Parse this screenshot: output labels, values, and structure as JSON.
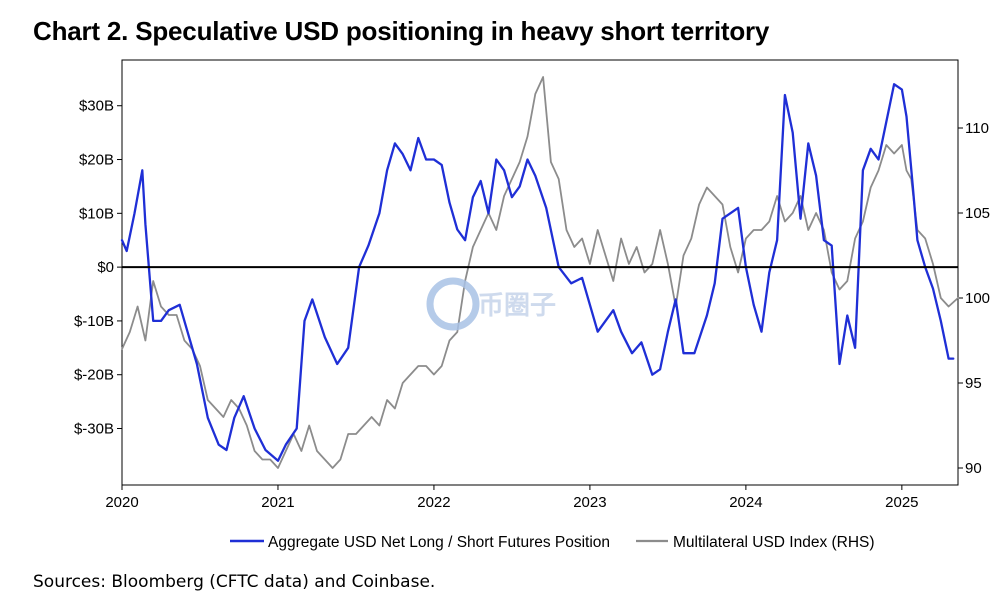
{
  "title": "Chart 2. Speculative USD positioning in heavy short territory",
  "source": "Sources: Bloomberg (CFTC data) and Coinbase.",
  "watermark": "币圈子",
  "colors": {
    "positioning": "#1f2fd6",
    "usd_index": "#8c8c8c",
    "zero_line": "#000000"
  },
  "chart_data": {
    "type": "line",
    "title": "Chart 2. Speculative USD positioning in heavy short territory",
    "x_ticks": [
      "2020",
      "2021",
      "2022",
      "2023",
      "2024",
      "2025"
    ],
    "xlim": [
      2020.0,
      2025.36
    ],
    "y_left": {
      "ticks": [
        "$30B",
        "$20B",
        "$10B",
        "$0",
        "$-10B",
        "$-20B",
        "$-30B"
      ],
      "tick_values": [
        30,
        20,
        10,
        0,
        -10,
        -20,
        -30
      ],
      "ylim": [
        -40.5,
        38.5
      ],
      "unit": "USD billions"
    },
    "y_right": {
      "ticks": [
        "110",
        "105",
        "100",
        "95",
        "90"
      ],
      "tick_values": [
        110,
        105,
        100,
        95,
        90
      ],
      "ylim": [
        89,
        114
      ]
    },
    "zero_line": 0,
    "legend_position": "bottom",
    "series": [
      {
        "name": "Aggregate USD Net Long / Short Futures Position",
        "axis": "left",
        "color": "#1f2fd6",
        "x": [
          2020.0,
          2020.03,
          2020.08,
          2020.13,
          2020.15,
          2020.2,
          2020.25,
          2020.3,
          2020.37,
          2020.42,
          2020.48,
          2020.55,
          2020.62,
          2020.67,
          2020.72,
          2020.78,
          2020.85,
          2020.92,
          2021.0,
          2021.05,
          2021.12,
          2021.17,
          2021.22,
          2021.3,
          2021.38,
          2021.45,
          2021.52,
          2021.58,
          2021.65,
          2021.7,
          2021.75,
          2021.8,
          2021.85,
          2021.9,
          2021.95,
          2022.0,
          2022.05,
          2022.1,
          2022.15,
          2022.2,
          2022.25,
          2022.3,
          2022.35,
          2022.4,
          2022.45,
          2022.5,
          2022.55,
          2022.6,
          2022.65,
          2022.72,
          2022.8,
          2022.88,
          2022.95,
          2023.0,
          2023.05,
          2023.1,
          2023.15,
          2023.2,
          2023.27,
          2023.33,
          2023.4,
          2023.45,
          2023.5,
          2023.55,
          2023.6,
          2023.67,
          2023.75,
          2023.8,
          2023.85,
          2023.9,
          2023.95,
          2024.0,
          2024.05,
          2024.1,
          2024.15,
          2024.2,
          2024.25,
          2024.3,
          2024.35,
          2024.4,
          2024.45,
          2024.5,
          2024.55,
          2024.6,
          2024.65,
          2024.7,
          2024.75,
          2024.8,
          2024.85,
          2024.9,
          2024.95,
          2025.0,
          2025.03,
          2025.07,
          2025.1,
          2025.15,
          2025.2,
          2025.25,
          2025.3,
          2025.33
        ],
        "values": [
          5,
          3,
          10,
          18,
          8,
          -10,
          -10,
          -8,
          -7,
          -12,
          -18,
          -28,
          -33,
          -34,
          -28,
          -24,
          -30,
          -34,
          -36,
          -33,
          -30,
          -10,
          -6,
          -13,
          -18,
          -15,
          0,
          4,
          10,
          18,
          23,
          21,
          18,
          24,
          20,
          20,
          19,
          12,
          7,
          5,
          13,
          16,
          10,
          20,
          18,
          13,
          15,
          20,
          17,
          11,
          0,
          -3,
          -2,
          -7,
          -12,
          -10,
          -8,
          -12,
          -16,
          -14,
          -20,
          -19,
          -12,
          -6,
          -16,
          -16,
          -9,
          -3,
          9,
          10,
          11,
          0,
          -7,
          -12,
          -1,
          5,
          32,
          25,
          9,
          23,
          17,
          5,
          4,
          -18,
          -9,
          -15,
          18,
          22,
          20,
          27,
          34,
          33,
          28,
          15,
          5,
          0,
          -4,
          -10,
          -17,
          -17
        ]
      },
      {
        "name": "Multilateral USD Index (RHS)",
        "axis": "right",
        "color": "#8c8c8c",
        "x": [
          2020.0,
          2020.05,
          2020.1,
          2020.15,
          2020.2,
          2020.25,
          2020.3,
          2020.35,
          2020.4,
          2020.45,
          2020.5,
          2020.55,
          2020.6,
          2020.65,
          2020.7,
          2020.75,
          2020.8,
          2020.85,
          2020.9,
          2020.95,
          2021.0,
          2021.05,
          2021.1,
          2021.15,
          2021.2,
          2021.25,
          2021.3,
          2021.35,
          2021.4,
          2021.45,
          2021.5,
          2021.55,
          2021.6,
          2021.65,
          2021.7,
          2021.75,
          2021.8,
          2021.85,
          2021.9,
          2021.95,
          2022.0,
          2022.05,
          2022.1,
          2022.15,
          2022.2,
          2022.25,
          2022.3,
          2022.35,
          2022.4,
          2022.45,
          2022.5,
          2022.55,
          2022.6,
          2022.65,
          2022.7,
          2022.75,
          2022.8,
          2022.85,
          2022.9,
          2022.95,
          2023.0,
          2023.05,
          2023.1,
          2023.15,
          2023.2,
          2023.25,
          2023.3,
          2023.35,
          2023.4,
          2023.45,
          2023.5,
          2023.55,
          2023.6,
          2023.65,
          2023.7,
          2023.75,
          2023.8,
          2023.85,
          2023.9,
          2023.95,
          2024.0,
          2024.05,
          2024.1,
          2024.15,
          2024.2,
          2024.25,
          2024.3,
          2024.35,
          2024.4,
          2024.45,
          2024.5,
          2024.55,
          2024.6,
          2024.65,
          2024.7,
          2024.75,
          2024.8,
          2024.85,
          2024.9,
          2024.95,
          2025.0,
          2025.03,
          2025.06,
          2025.1,
          2025.15,
          2025.2,
          2025.25,
          2025.3,
          2025.36
        ],
        "values": [
          97,
          98,
          99.5,
          97.5,
          101,
          99.5,
          99,
          99,
          97.5,
          97,
          96,
          94,
          93.5,
          93,
          94,
          93.5,
          92.5,
          91,
          90.5,
          90.5,
          90,
          91,
          92,
          91,
          92.5,
          91,
          90.5,
          90,
          90.5,
          92,
          92,
          92.5,
          93,
          92.5,
          94,
          93.5,
          95,
          95.5,
          96,
          96,
          95.5,
          96,
          97.5,
          98,
          101,
          103,
          104,
          105,
          104,
          106,
          107,
          108,
          109.5,
          112,
          113,
          108,
          107,
          104,
          103,
          103.5,
          102,
          104,
          102.5,
          101,
          103.5,
          102,
          103,
          101.5,
          102,
          104,
          102,
          99.5,
          102.5,
          103.5,
          105.5,
          106.5,
          106,
          105.5,
          103,
          101.5,
          103.5,
          104,
          104,
          104.5,
          106,
          104.5,
          105,
          106,
          104,
          105,
          104,
          101.5,
          100.5,
          101,
          103.5,
          104.5,
          106.5,
          107.5,
          109,
          108.5,
          109,
          107.5,
          107,
          104,
          103.5,
          102,
          100,
          99.5,
          100
        ]
      }
    ]
  }
}
